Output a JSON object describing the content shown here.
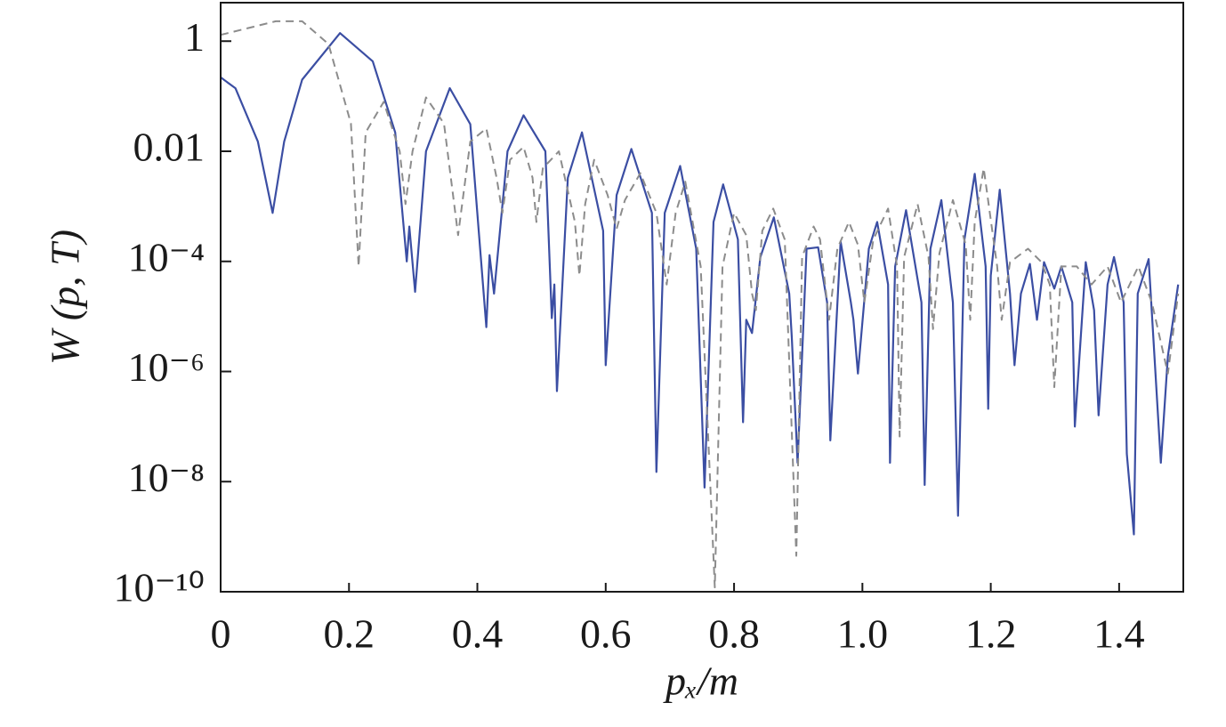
{
  "chart_data": {
    "type": "line",
    "x_label": "pₓ/m",
    "y_label": "W (p, T)",
    "yscale": "log",
    "xlim": [
      0,
      1.5
    ],
    "ylim": [
      1e-10,
      5
    ],
    "xticks": [
      0,
      0.2,
      0.4,
      0.6,
      0.8,
      {
        "value": 1,
        "label": "1.0"
      },
      1.2,
      1.4
    ],
    "yticks": [
      1,
      0.01,
      {
        "value": 0.0001,
        "label": "10⁻⁴"
      },
      {
        "value": 1e-06,
        "label": "10⁻⁶"
      },
      {
        "value": 1e-08,
        "label": "10⁻⁸"
      },
      {
        "value": 1e-10,
        "label": "10⁻¹⁰"
      }
    ],
    "series": [
      {
        "color": "#3b4ea3",
        "linestyle": "solid",
        "x": [
          0,
          0.023,
          0.058,
          0.081,
          0.099,
          0.127,
          0.186,
          0.237,
          0.272,
          0.29,
          0.294,
          0.303,
          0.32,
          0.357,
          0.389,
          0.414,
          0.419,
          0.426,
          0.447,
          0.472,
          0.506,
          0.516,
          0.52,
          0.524,
          0.541,
          0.563,
          0.596,
          0.6,
          0.617,
          0.64,
          0.672,
          0.679,
          0.692,
          0.716,
          0.741,
          0.754,
          0.768,
          0.783,
          0.806,
          0.814,
          0.819,
          0.828,
          0.841,
          0.862,
          0.886,
          0.89,
          0.899,
          0.913,
          0.931,
          0.945,
          0.95,
          0.966,
          0.982,
          0.986,
          0.993,
          1.01,
          1.023,
          1.04,
          1.043,
          1.051,
          1.068,
          1.092,
          1.097,
          1.106,
          1.123,
          1.141,
          1.149,
          1.159,
          1.175,
          1.192,
          1.196,
          1.2,
          1.214,
          1.23,
          1.237,
          1.247,
          1.261,
          1.272,
          1.283,
          1.299,
          1.31,
          1.327,
          1.331,
          1.348,
          1.361,
          1.368,
          1.382,
          1.392,
          1.407,
          1.412,
          1.423,
          1.429,
          1.446,
          1.465,
          1.476,
          1.492
        ],
        "values": [
          0.22,
          0.14,
          0.015,
          0.00076,
          0.015,
          0.2,
          1.4,
          0.43,
          0.022,
          0.0001,
          0.00043,
          2.8e-05,
          0.01,
          0.14,
          0.031,
          6.4e-06,
          0.00013,
          2.6e-05,
          0.01,
          0.045,
          0.01,
          9.3e-06,
          3.8e-05,
          4.4e-07,
          0.0033,
          0.022,
          0.00036,
          1.3e-06,
          0.0016,
          0.011,
          0.00076,
          1.5e-08,
          0.00076,
          0.0054,
          0.00017,
          7.8e-09,
          0.00052,
          0.0025,
          0.00025,
          1.2e-07,
          8.7e-06,
          5e-06,
          0.00012,
          0.00063,
          2.6e-05,
          4.1e-06,
          2.2e-08,
          0.00017,
          0.00018,
          1.8e-05,
          5.6e-08,
          0.00023,
          1.8e-05,
          8.7e-06,
          9.2e-07,
          0.00017,
          0.00052,
          3.8e-05,
          2.2e-08,
          8.1e-05,
          0.00085,
          1.8e-05,
          8.7e-09,
          0.00017,
          0.0013,
          1.8e-05,
          2.4e-09,
          0.00025,
          0.0039,
          8.1e-05,
          2.1e-07,
          5.5e-05,
          0.002,
          2.6e-05,
          1.3e-06,
          2.6e-05,
          9e-05,
          8.7e-06,
          9.7e-05,
          3.2e-05,
          8.1e-05,
          1.8e-05,
          1e-07,
          9.7e-05,
          1.3e-05,
          1.6e-07,
          3.8e-05,
          0.00012,
          1.8e-05,
          3.2e-08,
          1.1e-09,
          2.6e-05,
          0.00011,
          2.2e-08,
          1.9e-06,
          3.8e-05
        ]
      },
      {
        "color": "#8c8c8c",
        "linestyle": "dashed",
        "x": [
          0,
          0.086,
          0.127,
          0.168,
          0.203,
          0.215,
          0.226,
          0.254,
          0.279,
          0.288,
          0.299,
          0.32,
          0.348,
          0.37,
          0.389,
          0.414,
          0.43,
          0.439,
          0.451,
          0.472,
          0.486,
          0.492,
          0.502,
          0.527,
          0.552,
          0.559,
          0.568,
          0.582,
          0.603,
          0.617,
          0.63,
          0.654,
          0.679,
          0.695,
          0.709,
          0.724,
          0.748,
          0.77,
          0.782,
          0.8,
          0.819,
          0.828,
          0.834,
          0.844,
          0.861,
          0.879,
          0.897,
          0.906,
          0.924,
          0.934,
          0.948,
          0.961,
          0.979,
          0.993,
          1.003,
          1.017,
          1.04,
          1.054,
          1.058,
          1.065,
          1.086,
          1.103,
          1.11,
          1.12,
          1.141,
          1.161,
          1.168,
          1.175,
          1.189,
          1.21,
          1.217,
          1.23,
          1.258,
          1.279,
          1.292,
          1.299,
          1.31,
          1.334,
          1.357,
          1.382,
          1.403,
          1.43,
          1.451,
          1.476,
          1.492
        ],
        "values": [
          1.3,
          2.3,
          2.3,
          0.89,
          0.032,
          8.1e-05,
          0.022,
          0.079,
          0.01,
          0.0011,
          0.01,
          0.095,
          0.032,
          0.0003,
          0.015,
          0.026,
          0.0033,
          0.00076,
          0.007,
          0.012,
          0.0033,
          0.00052,
          0.0049,
          0.01,
          0.00052,
          5.5e-05,
          0.0011,
          0.007,
          0.0016,
          0.00039,
          0.0013,
          0.004,
          0.00076,
          3.8e-05,
          0.00076,
          0.0028,
          8.1e-05,
          1.2e-10,
          8.1e-05,
          0.00076,
          0.0003,
          2.6e-05,
          1.3e-05,
          0.00036,
          0.00091,
          0.00025,
          4.5e-10,
          0.00012,
          0.00043,
          0.00025,
          8.7e-06,
          0.00017,
          0.00052,
          0.0002,
          1.8e-05,
          0.00025,
          0.00091,
          8.1e-05,
          6.6e-08,
          0.00012,
          0.0011,
          0.00012,
          5.9e-06,
          0.00014,
          0.0013,
          0.0002,
          8.7e-06,
          0.00052,
          0.0049,
          8.1e-05,
          8.7e-06,
          9.7e-05,
          0.00017,
          9.7e-05,
          3.8e-05,
          5.2e-07,
          8.1e-05,
          8.1e-05,
          3.8e-05,
          8.1e-05,
          1.8e-05,
          8.1e-05,
          1.8e-05,
          9.2e-07,
          2.6e-05
        ]
      }
    ]
  }
}
